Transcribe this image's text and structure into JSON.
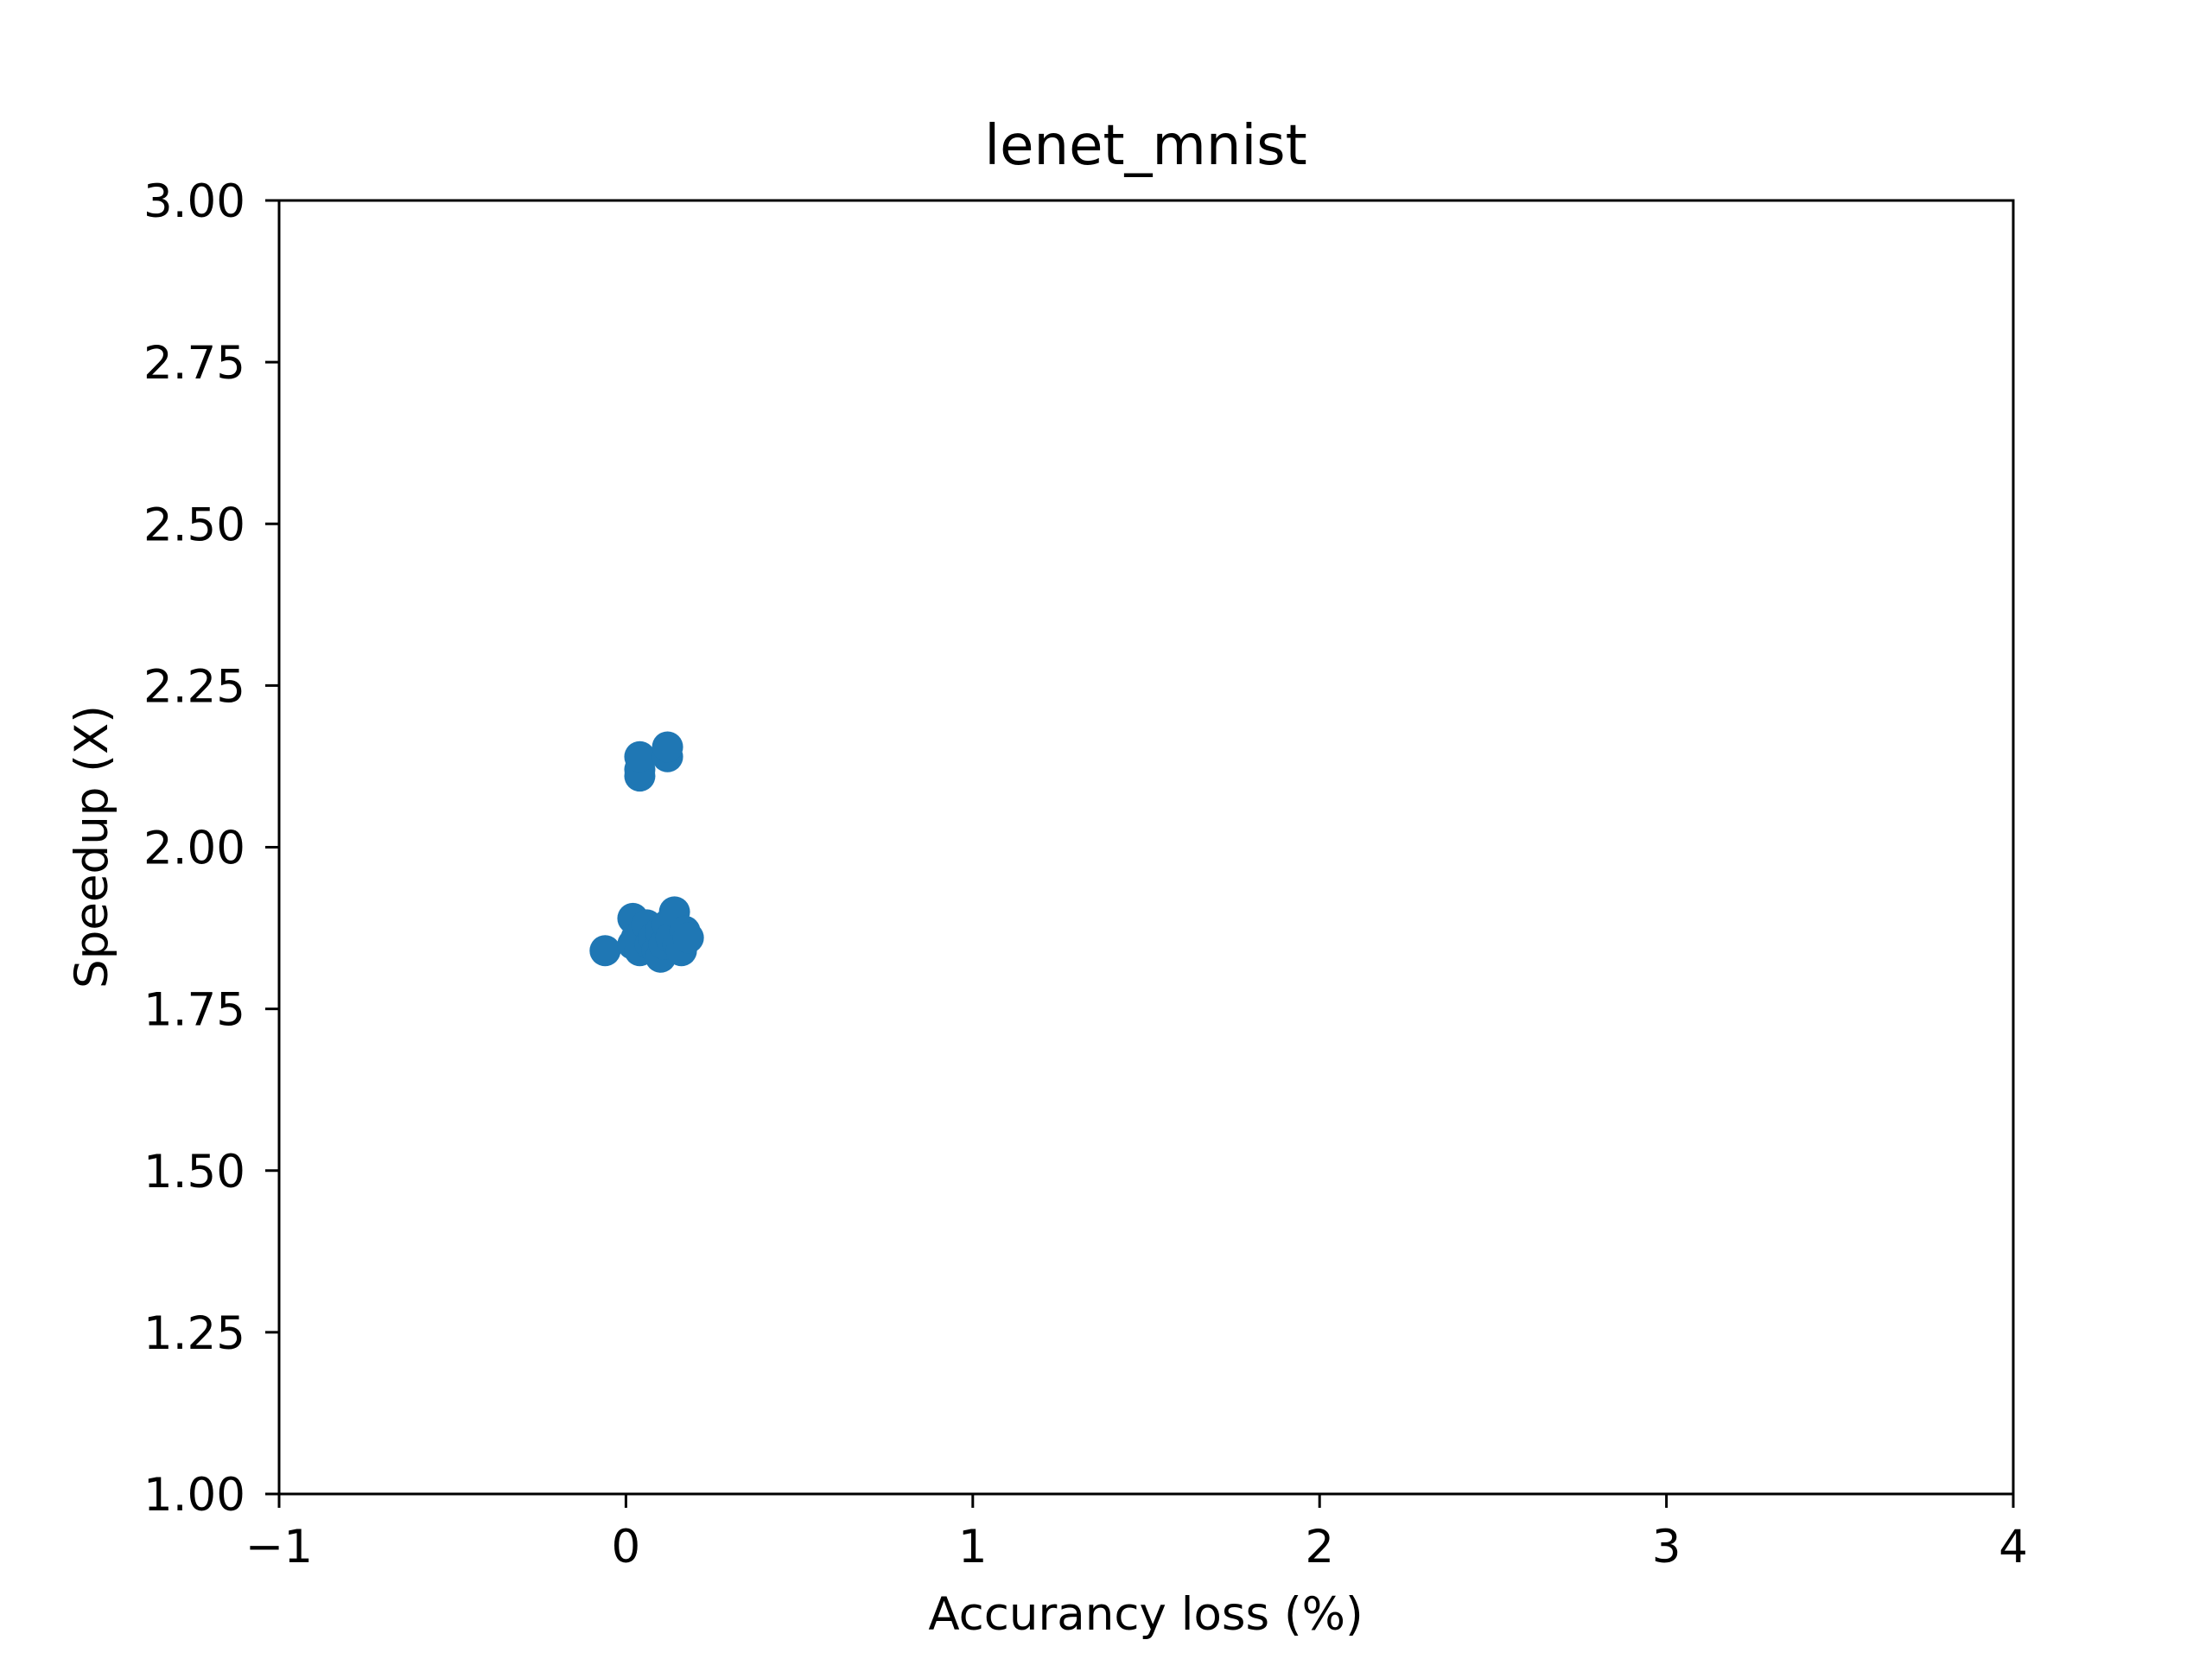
{
  "chart_data": {
    "type": "scatter",
    "title": "lenet_mnist",
    "xlabel": "Accurancy loss (%)",
    "ylabel": "Speedup (X)",
    "xlim": [
      -1,
      4
    ],
    "ylim": [
      1.0,
      3.0
    ],
    "x_ticks": [
      -1,
      0,
      1,
      2,
      3,
      4
    ],
    "x_tick_labels": [
      "−1",
      "0",
      "1",
      "2",
      "3",
      "4"
    ],
    "y_ticks": [
      1.0,
      1.25,
      1.5,
      1.75,
      2.0,
      2.25,
      2.5,
      2.75,
      3.0
    ],
    "y_tick_labels": [
      "1.00",
      "1.25",
      "1.50",
      "1.75",
      "2.00",
      "2.25",
      "2.50",
      "2.75",
      "3.00"
    ],
    "grid": false,
    "marker_color": "#1f77b4",
    "series": [
      {
        "points": [
          {
            "x": -0.06,
            "y": 1.84
          },
          {
            "x": 0.02,
            "y": 1.89
          },
          {
            "x": 0.03,
            "y": 1.86
          },
          {
            "x": 0.02,
            "y": 1.85
          },
          {
            "x": 0.04,
            "y": 1.84
          },
          {
            "x": 0.05,
            "y": 1.87
          },
          {
            "x": 0.06,
            "y": 1.88
          },
          {
            "x": 0.07,
            "y": 1.85
          },
          {
            "x": 0.08,
            "y": 1.86
          },
          {
            "x": 0.09,
            "y": 1.84
          },
          {
            "x": 0.1,
            "y": 1.83
          },
          {
            "x": 0.1,
            "y": 1.87
          },
          {
            "x": 0.11,
            "y": 1.85
          },
          {
            "x": 0.12,
            "y": 1.88
          },
          {
            "x": 0.13,
            "y": 1.86
          },
          {
            "x": 0.14,
            "y": 1.9
          },
          {
            "x": 0.15,
            "y": 1.85
          },
          {
            "x": 0.16,
            "y": 1.84
          },
          {
            "x": 0.17,
            "y": 1.87
          },
          {
            "x": 0.18,
            "y": 1.86
          },
          {
            "x": 0.04,
            "y": 2.11
          },
          {
            "x": 0.04,
            "y": 2.12
          },
          {
            "x": 0.04,
            "y": 2.14
          },
          {
            "x": 0.12,
            "y": 2.14
          },
          {
            "x": 0.12,
            "y": 2.155
          }
        ]
      }
    ]
  }
}
